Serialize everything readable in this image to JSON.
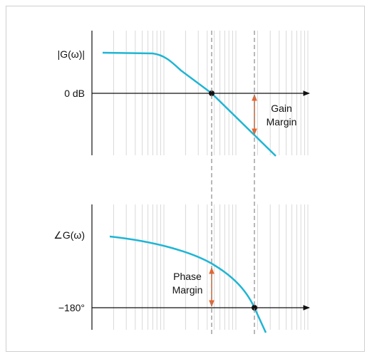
{
  "diagram": {
    "top_panel": {
      "ylabel": "|G(ω)|",
      "ref_label": "0 dB",
      "margin_label_line1": "Gain",
      "margin_label_line2": "Margin"
    },
    "bottom_panel": {
      "ylabel": "∠G(ω)",
      "ref_label": "−180°",
      "margin_label_line1": "Phase",
      "margin_label_line2": "Margin"
    },
    "colors": {
      "curve": "#1fb5d4",
      "margin_arrow": "#e8642c",
      "axis": "#111111",
      "grid": "#d9d9d9",
      "guide": "#8a8a8a"
    }
  }
}
